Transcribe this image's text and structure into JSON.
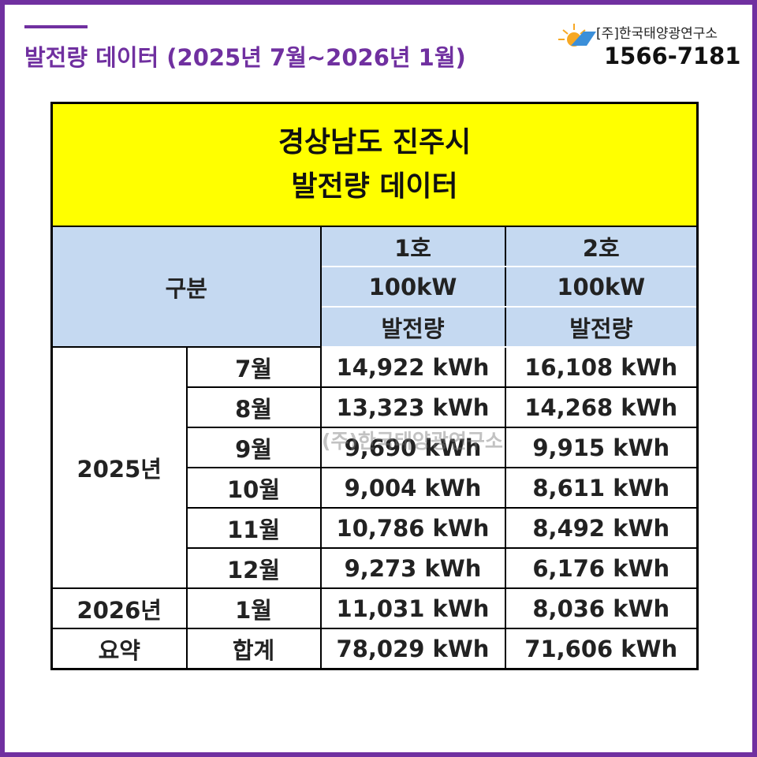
{
  "header": {
    "title": "발전량 데이터 (2025년 7월~2026년 1월)",
    "company": "[주]한국태양광연구소",
    "phone": "1566-7181"
  },
  "table": {
    "title": [
      "경상남도 진주시",
      "발전량 데이터"
    ],
    "header": {
      "label": "구분",
      "columns": [
        {
          "unit": "1호",
          "capacity": "100kW",
          "metric": "발전량"
        },
        {
          "unit": "2호",
          "capacity": "100kW",
          "metric": "발전량"
        }
      ]
    },
    "groups": [
      {
        "year": "2025년",
        "rows": [
          {
            "month": "7월",
            "values": [
              "14,922 kWh",
              "16,108 kWh"
            ]
          },
          {
            "month": "8월",
            "values": [
              "13,323 kWh",
              "14,268 kWh"
            ]
          },
          {
            "month": "9월",
            "values": [
              "9,690 kWh",
              "9,915 kWh"
            ]
          },
          {
            "month": "10월",
            "values": [
              "9,004 kWh",
              "8,611 kWh"
            ]
          },
          {
            "month": "11월",
            "values": [
              "10,786 kWh",
              "8,492 kWh"
            ]
          },
          {
            "month": "12월",
            "values": [
              "9,273 kWh",
              "6,176 kWh"
            ]
          }
        ]
      },
      {
        "year": "2026년",
        "rows": [
          {
            "month": "1월",
            "values": [
              "11,031 kWh",
              "8,036 kWh"
            ]
          }
        ]
      },
      {
        "year": "요약",
        "rows": [
          {
            "month": "합계",
            "values": [
              "78,029 kWh",
              "71,606 kWh"
            ]
          }
        ]
      }
    ]
  },
  "watermark": {
    "text": "(주)한국태양광연구소"
  }
}
